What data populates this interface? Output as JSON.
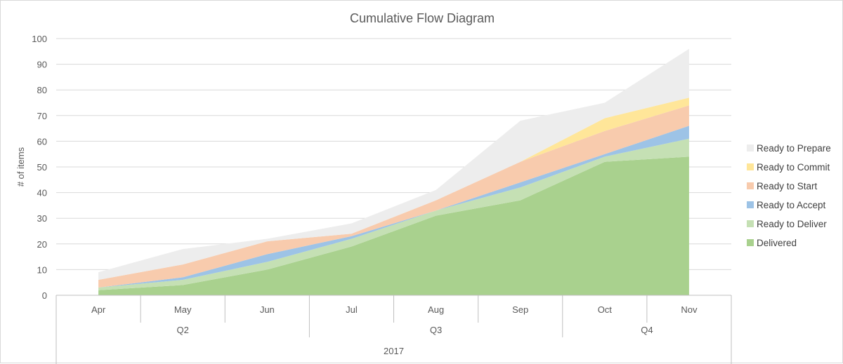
{
  "chart_data": {
    "type": "area",
    "stacked": true,
    "title": "Cumulative Flow Diagram",
    "ylabel": "# of items",
    "ylim": [
      0,
      100
    ],
    "y_ticks": [
      0,
      10,
      20,
      30,
      40,
      50,
      60,
      70,
      80,
      90,
      100
    ],
    "grid": true,
    "legend_position": "right",
    "categories": [
      "Apr",
      "May",
      "Jun",
      "Jul",
      "Aug",
      "Sep",
      "Oct",
      "Nov"
    ],
    "quarters": [
      {
        "label": "Q2",
        "months": 3
      },
      {
        "label": "Q3",
        "months": 3
      },
      {
        "label": "Q4",
        "months": 2
      }
    ],
    "year": {
      "label": "2017",
      "months": 8
    },
    "series": [
      {
        "name": "Delivered",
        "color": "#a9d18e",
        "values": [
          2,
          4,
          10,
          19,
          31,
          37,
          52,
          54
        ]
      },
      {
        "name": "Ready to Deliver",
        "color": "#c5e0b4",
        "values": [
          1,
          2,
          3,
          3,
          2,
          5,
          2,
          7
        ]
      },
      {
        "name": "Ready to Accept",
        "color": "#9dc3e6",
        "values": [
          0,
          1,
          3,
          1,
          0,
          2,
          1,
          5
        ]
      },
      {
        "name": "Ready to Start",
        "color": "#f8cbad",
        "values": [
          3,
          5,
          5,
          1,
          4,
          8,
          9,
          8
        ]
      },
      {
        "name": "Ready to Commit",
        "color": "#ffe699",
        "values": [
          0,
          0,
          0,
          0,
          0,
          0,
          5,
          3
        ]
      },
      {
        "name": "Ready to Prepare",
        "color": "#ededed",
        "values": [
          3,
          6,
          1,
          4,
          4,
          16,
          6,
          19
        ]
      }
    ],
    "legend_order": [
      "Ready to Prepare",
      "Ready to Commit",
      "Ready to Start",
      "Ready to Accept",
      "Ready to Deliver",
      "Delivered"
    ]
  }
}
